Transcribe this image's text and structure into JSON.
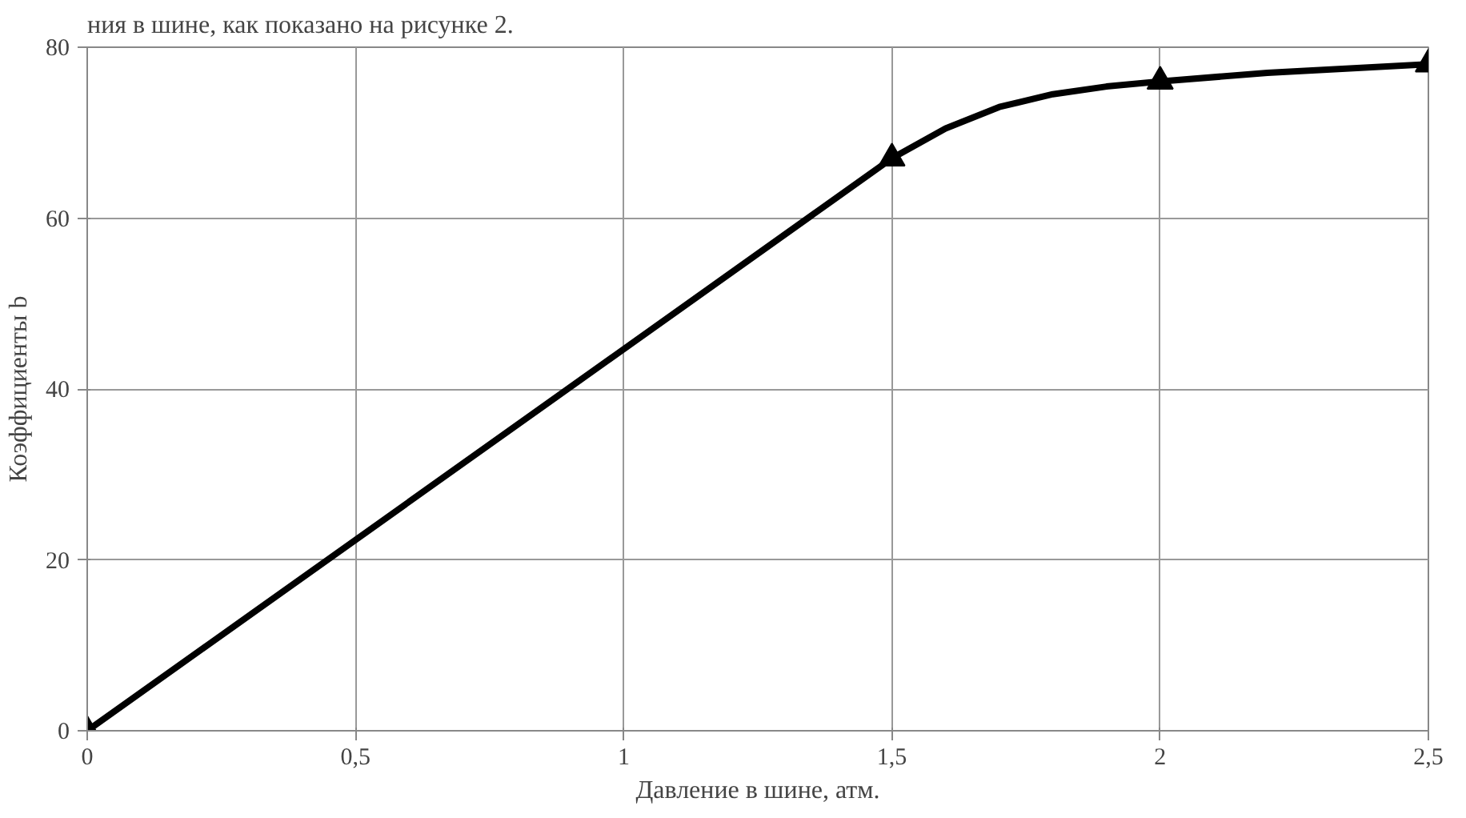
{
  "chart_data": {
    "type": "line",
    "xlabel": "Давление в шине, атм.",
    "ylabel": "Коэффициенты b",
    "annotations": [
      "ния в шине, как показано на рисунке 2."
    ],
    "x": [
      0,
      1.5,
      2,
      2.5
    ],
    "series": [
      {
        "color": "#000000",
        "x": [
          0,
          1.5,
          1.6,
          1.7,
          1.8,
          1.9,
          2,
          2.2,
          2.5
        ],
        "values": [
          0,
          67,
          70.5,
          73,
          74.5,
          75.4,
          76,
          77,
          78
        ],
        "marker": "none"
      },
      {
        "type": "scatter",
        "color": "#000000",
        "values": [
          0,
          67,
          76,
          78
        ]
      }
    ],
    "xlim": [
      0,
      2.5
    ],
    "xticks": [
      0,
      {
        "value": 0.5,
        "label": "0,5"
      },
      1,
      {
        "value": 1.5,
        "label": "1,5"
      },
      2,
      {
        "value": 2.5,
        "label": "2,5"
      }
    ],
    "ylim": [
      0,
      80
    ],
    "yticks": [
      0,
      20,
      40,
      60,
      80
    ],
    "grid": true,
    "marker": "triangle",
    "line_style": "solid"
  }
}
